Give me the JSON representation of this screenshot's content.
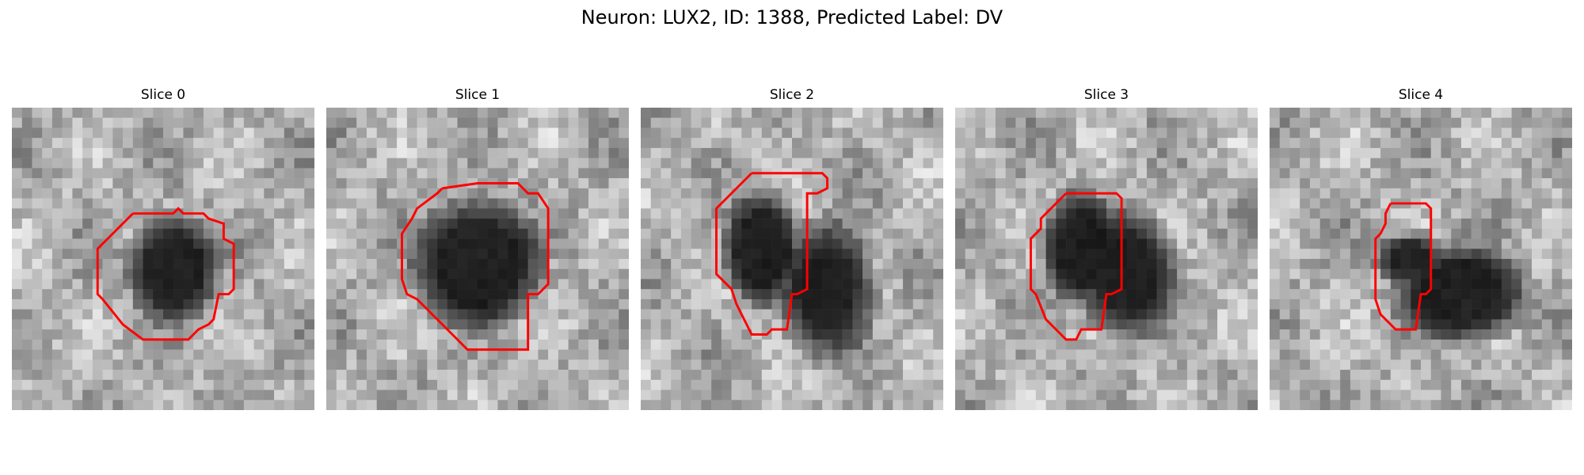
{
  "figure": {
    "title": "Neuron: LUX2, ID: 1388, Predicted Label: DV",
    "contour_color": "#ff0000"
  },
  "panels": [
    {
      "title": "Slice 0"
    },
    {
      "title": "Slice 1"
    },
    {
      "title": "Slice 2"
    },
    {
      "title": "Slice 3"
    },
    {
      "title": "Slice 4"
    }
  ]
}
